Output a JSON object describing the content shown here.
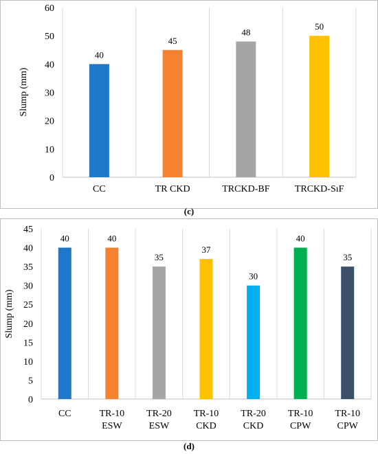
{
  "chart_data": [
    {
      "type": "bar",
      "panel_label": "(c)",
      "ylabel": "Slump (mm)",
      "xlabel": "",
      "ylim": [
        0,
        60
      ],
      "yticks": [
        0,
        10,
        20,
        30,
        40,
        50,
        60
      ],
      "grid": "vertical separators",
      "categories": [
        [
          "CC"
        ],
        [
          "TR CKD"
        ],
        [
          "TRCKD-BF"
        ],
        [
          "TRCKD-SıF"
        ]
      ],
      "values": [
        40,
        45,
        48,
        50
      ],
      "data_labels": [
        "40",
        "45",
        "48",
        "50"
      ],
      "colors": [
        "#1f77c9",
        "#f58231",
        "#a5a5a5",
        "#ffc000"
      ]
    },
    {
      "type": "bar",
      "panel_label": "(d)",
      "ylabel": "Slump (mm)",
      "xlabel": "",
      "ylim": [
        0,
        45
      ],
      "yticks": [
        0,
        5,
        10,
        15,
        20,
        25,
        30,
        35,
        40,
        45
      ],
      "grid": "vertical separators",
      "categories": [
        [
          "CC"
        ],
        [
          "TR-10",
          "ESW"
        ],
        [
          "TR-20",
          "ESW"
        ],
        [
          "TR-10",
          "CKD"
        ],
        [
          "TR-20",
          "CKD"
        ],
        [
          "TR-10",
          "CPW"
        ],
        [
          "TR-10",
          "CPW"
        ]
      ],
      "values": [
        40,
        40,
        35,
        37,
        30,
        40,
        35
      ],
      "data_labels": [
        "40",
        "40",
        "35",
        "37",
        "30",
        "40",
        "35"
      ],
      "colors": [
        "#1f77c9",
        "#f58231",
        "#a5a5a5",
        "#ffc000",
        "#00b0f0",
        "#00b050",
        "#3a5068"
      ]
    }
  ]
}
